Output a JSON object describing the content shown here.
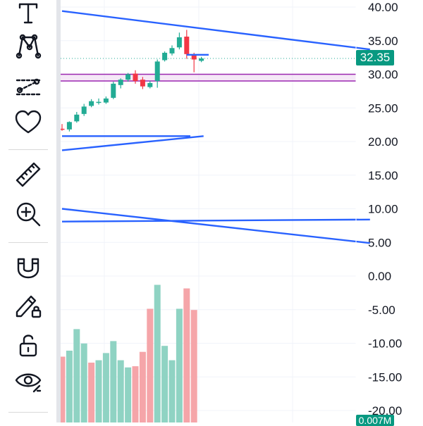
{
  "price_axis": {
    "labels": [
      "40.00",
      "35.00",
      "30.00",
      "25.00",
      "20.00",
      "15.00",
      "10.00",
      "5.00",
      "0.00",
      "-5.00",
      "-10.00",
      "-15.00",
      "-20.00"
    ],
    "last_price": "32.35",
    "last_price_color": "#089981",
    "volume_badge": "0.007M"
  },
  "toolbar": {
    "items": [
      {
        "name": "text-tool",
        "icon": "text-icon"
      },
      {
        "name": "pattern-tool",
        "icon": "pattern-icon"
      },
      {
        "name": "prediction-tool",
        "icon": "prediction-icon"
      },
      {
        "name": "favorites-tool",
        "icon": "heart-icon"
      },
      {
        "name": "measure-tool",
        "icon": "ruler-icon"
      },
      {
        "name": "zoom-tool",
        "icon": "zoom-in-icon"
      },
      {
        "name": "magnet-tool",
        "icon": "magnet-icon"
      },
      {
        "name": "lock-drawing-tool",
        "icon": "pencil-lock-icon"
      },
      {
        "name": "lock-all-tool",
        "icon": "unlock-icon"
      },
      {
        "name": "hide-tool",
        "icon": "eye-icon"
      }
    ]
  },
  "colors": {
    "up": "#22ab94",
    "down": "#f23645",
    "vol_up": "#8fd3c3",
    "vol_down": "#f5a5a9",
    "drawing": "#2962ff",
    "zone": "#9c27b0"
  },
  "chart_data": {
    "type": "candlestick",
    "y_range": [
      -21,
      41
    ],
    "candles": [
      {
        "o": 21.9,
        "h": 22.6,
        "l": 21.6,
        "c": 21.9,
        "dir": "down"
      },
      {
        "o": 21.8,
        "h": 23.0,
        "l": 21.5,
        "c": 22.9,
        "dir": "up"
      },
      {
        "o": 23.0,
        "h": 24.4,
        "l": 22.8,
        "c": 24.0,
        "dir": "up"
      },
      {
        "o": 24.1,
        "h": 25.6,
        "l": 23.8,
        "c": 25.2,
        "dir": "up"
      },
      {
        "o": 25.3,
        "h": 26.3,
        "l": 25.1,
        "c": 26.0,
        "dir": "up"
      },
      {
        "o": 25.9,
        "h": 26.4,
        "l": 25.5,
        "c": 25.9,
        "dir": "up"
      },
      {
        "o": 25.8,
        "h": 26.7,
        "l": 25.6,
        "c": 26.4,
        "dir": "up"
      },
      {
        "o": 26.5,
        "h": 28.9,
        "l": 26.3,
        "c": 28.6,
        "dir": "up"
      },
      {
        "o": 28.4,
        "h": 29.4,
        "l": 27.9,
        "c": 29.2,
        "dir": "up"
      },
      {
        "o": 29.2,
        "h": 30.2,
        "l": 28.9,
        "c": 30.0,
        "dir": "up"
      },
      {
        "o": 30.1,
        "h": 30.6,
        "l": 28.6,
        "c": 29.0,
        "dir": "down"
      },
      {
        "o": 29.2,
        "h": 29.6,
        "l": 27.8,
        "c": 28.2,
        "dir": "down"
      },
      {
        "o": 28.1,
        "h": 29.0,
        "l": 27.9,
        "c": 28.7,
        "dir": "up"
      },
      {
        "o": 29.0,
        "h": 32.2,
        "l": 28.0,
        "c": 31.9,
        "dir": "up"
      },
      {
        "o": 32.1,
        "h": 33.4,
        "l": 31.9,
        "c": 33.2,
        "dir": "up"
      },
      {
        "o": 33.1,
        "h": 34.3,
        "l": 32.8,
        "c": 33.9,
        "dir": "up"
      },
      {
        "o": 34.0,
        "h": 36.2,
        "l": 33.7,
        "c": 35.5,
        "dir": "up"
      },
      {
        "o": 35.6,
        "h": 36.6,
        "l": 32.3,
        "c": 33.0,
        "dir": "down"
      },
      {
        "o": 32.8,
        "h": 33.2,
        "l": 30.3,
        "c": 32.2,
        "dir": "down"
      },
      {
        "o": 32.0,
        "h": 32.6,
        "l": 31.8,
        "c": 32.35,
        "dir": "up"
      }
    ],
    "volume": [
      {
        "v": 0.55,
        "dir": "down"
      },
      {
        "v": 0.6,
        "dir": "up"
      },
      {
        "v": 0.78,
        "dir": "up"
      },
      {
        "v": 0.66,
        "dir": "up"
      },
      {
        "v": 0.5,
        "dir": "down"
      },
      {
        "v": 0.52,
        "dir": "up"
      },
      {
        "v": 0.58,
        "dir": "up"
      },
      {
        "v": 0.68,
        "dir": "up"
      },
      {
        "v": 0.52,
        "dir": "up"
      },
      {
        "v": 0.46,
        "dir": "up"
      },
      {
        "v": 0.47,
        "dir": "down"
      },
      {
        "v": 0.59,
        "dir": "down"
      },
      {
        "v": 0.95,
        "dir": "down"
      },
      {
        "v": 1.15,
        "dir": "up"
      },
      {
        "v": 0.64,
        "dir": "up"
      },
      {
        "v": 0.52,
        "dir": "up"
      },
      {
        "v": 0.95,
        "dir": "up"
      },
      {
        "v": 1.12,
        "dir": "down"
      },
      {
        "v": 0.94,
        "dir": "down"
      },
      {
        "v": 0.0,
        "dir": "up"
      }
    ],
    "drawings": {
      "trend_lines": [
        {
          "from": [
            0,
            39.4
          ],
          "to": [
            42,
            33.7
          ]
        },
        {
          "from": [
            0,
            10.0
          ],
          "to": [
            42,
            4.9
          ]
        },
        {
          "from": [
            0,
            8.1
          ],
          "to": [
            42,
            8.4
          ]
        },
        {
          "from": [
            0,
            20.8
          ],
          "to": [
            17.5,
            20.8
          ]
        },
        {
          "from": [
            0,
            18.7
          ],
          "to": [
            19.3,
            20.8
          ]
        },
        {
          "from": [
            17.0,
            32.9
          ],
          "to": [
            20.0,
            32.9
          ]
        }
      ],
      "zone": {
        "top": 30.0,
        "bottom": 29.0
      },
      "last_price_line": 32.35
    }
  }
}
